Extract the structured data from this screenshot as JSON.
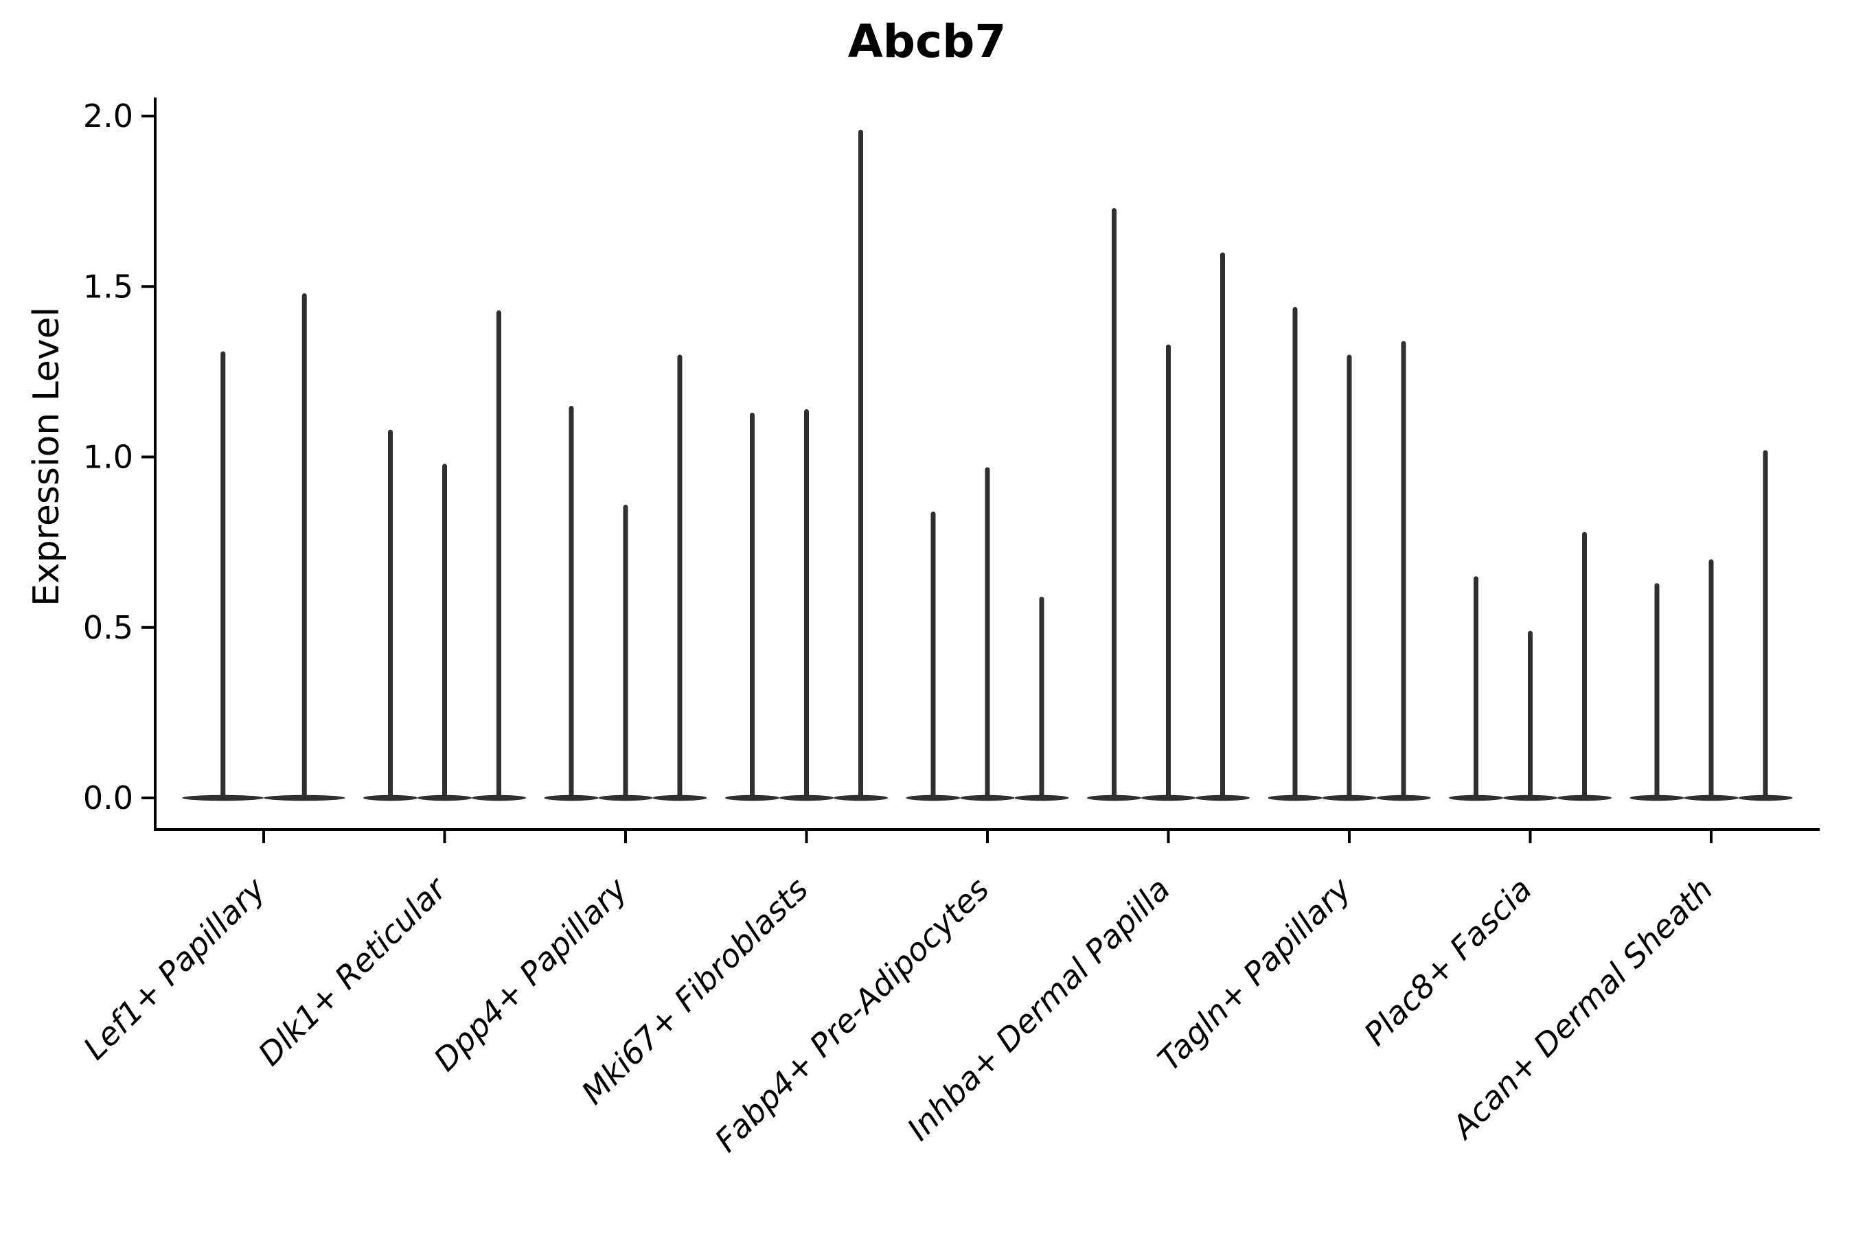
{
  "chart_data": {
    "type": "violin",
    "title": "Abcb7",
    "xlabel": "",
    "ylabel": "Expression Level",
    "ylim": [
      0.0,
      2.0
    ],
    "yticks": [
      "0.0",
      "0.5",
      "1.0",
      "1.5",
      "2.0"
    ],
    "ytick_values": [
      0.0,
      0.5,
      1.0,
      1.5,
      2.0
    ],
    "grid": false,
    "legend": "none",
    "x_tick_rotation": 45,
    "categories": [
      "Lef1+ Papillary",
      "Dlk1+ Reticular",
      "Dpp4+ Papillary",
      "Mki67+ Fibroblasts",
      "Fabp4+ Pre-Adipocytes",
      "Inhba+ Dermal Papilla",
      "Tagln+ Papillary",
      "Plac8+ Fascia",
      "Acan+ Dermal Sheath"
    ],
    "groups": [
      {
        "category": "Lef1+ Papillary",
        "violin_max": [
          1.31,
          1.48
        ]
      },
      {
        "category": "Dlk1+ Reticular",
        "violin_max": [
          1.08,
          0.98,
          1.43
        ]
      },
      {
        "category": "Dpp4+ Papillary",
        "violin_max": [
          1.15,
          0.86,
          1.3
        ]
      },
      {
        "category": "Mki67+ Fibroblasts",
        "violin_max": [
          1.13,
          1.14,
          1.96
        ]
      },
      {
        "category": "Fabp4+ Pre-Adipocytes",
        "violin_max": [
          0.84,
          0.97,
          0.59
        ]
      },
      {
        "category": "Inhba+ Dermal Papilla",
        "violin_max": [
          1.73,
          1.33,
          1.6
        ]
      },
      {
        "category": "Tagln+ Papillary",
        "violin_max": [
          1.44,
          1.3,
          1.34
        ]
      },
      {
        "category": "Plac8+ Fascia",
        "violin_max": [
          0.65,
          0.49,
          0.78
        ]
      },
      {
        "category": "Acan+ Dermal Sheath",
        "violin_max": [
          0.63,
          0.7,
          1.02
        ]
      }
    ],
    "colors": {
      "violin": "#2f2f2f",
      "axis": "#000000",
      "text": "#000000",
      "background": "#ffffff"
    }
  }
}
